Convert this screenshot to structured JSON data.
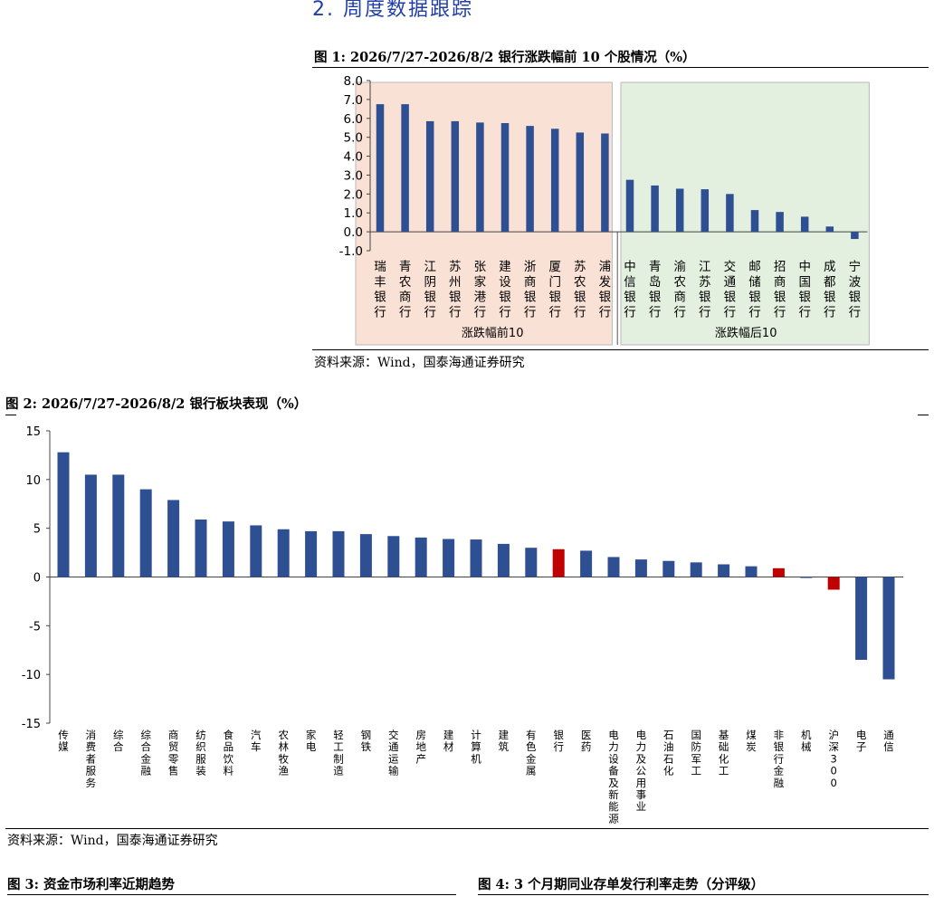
{
  "section_heading": "2. 周度数据跟踪",
  "fig1": {
    "title": "图 1:  2026/7/27-2026/8/2 银行涨跌幅前 10 个股情况（%）",
    "source": "资料来源：Wind，国泰海通证券研究"
  },
  "fig2": {
    "title": "图 2:  2026/7/27-2026/8/2 银行板块表现（%）",
    "source": "资料来源：Wind，国泰海通证券研究"
  },
  "fig3": {
    "title": "图 3:  资金市场利率近期趋势"
  },
  "fig4": {
    "title": "图 4:  3 个月期同业存单发行利率走势（分评级）"
  },
  "colors": {
    "bar": "#2f4f93",
    "highlight": "#c00000",
    "top_bg": "#f9e1d6",
    "bottom_bg": "#e4f0df"
  },
  "chart_data": [
    {
      "type": "bar",
      "title": "2026/7/27-2026/8/2 银行涨跌幅前 10 个股情况（%）",
      "categories": [
        "瑞丰银行",
        "青农商行",
        "江阴银行",
        "苏州银行",
        "张家港行",
        "建设银行",
        "浙商银行",
        "厦门银行",
        "苏农银行",
        "浦发银行",
        "中信银行",
        "青岛银行",
        "渝农商行",
        "江苏银行",
        "交通银行",
        "邮储银行",
        "招商银行",
        "中国银行",
        "成都银行",
        "宁波银行"
      ],
      "values": [
        6.75,
        6.75,
        5.85,
        5.85,
        5.78,
        5.75,
        5.6,
        5.45,
        5.25,
        5.2,
        2.75,
        2.45,
        2.28,
        2.25,
        2.0,
        1.15,
        1.05,
        0.8,
        0.28,
        -0.38
      ],
      "groups": [
        {
          "name": "涨跌幅前10",
          "start": 0,
          "end": 9
        },
        {
          "name": "涨跌幅后10",
          "start": 10,
          "end": 19
        }
      ],
      "ylim": [
        -1.0,
        8.0
      ],
      "yticks": [
        "8.0",
        "7.0",
        "6.0",
        "5.0",
        "4.0",
        "3.0",
        "2.0",
        "1.0",
        "0.0",
        "-1.0"
      ]
    },
    {
      "type": "bar",
      "title": "2026/7/27-2026/8/2 银行板块表现（%）",
      "categories": [
        "传媒",
        "消费者服务",
        "综合",
        "综合金融",
        "商贸零售",
        "纺织服装",
        "食品饮料",
        "汽车",
        "农林牧渔",
        "家电",
        "轻工制造",
        "钢铁",
        "交通运输",
        "房地产",
        "建材",
        "计算机",
        "建筑",
        "有色金属",
        "银行",
        "医药",
        "电力设备及新能源",
        "电力及公用事业",
        "石油石化",
        "国防军工",
        "基础化工",
        "煤炭",
        "非银行金融",
        "机械",
        "沪深300",
        "电子",
        "通信"
      ],
      "values": [
        12.8,
        10.5,
        10.5,
        9.0,
        7.9,
        5.9,
        5.7,
        5.3,
        4.9,
        4.7,
        4.7,
        4.4,
        4.2,
        4.05,
        3.9,
        3.85,
        3.4,
        3.0,
        2.85,
        2.7,
        2.05,
        1.8,
        1.65,
        1.5,
        1.3,
        1.1,
        0.9,
        -0.1,
        -1.3,
        -8.5,
        -10.5
      ],
      "highlight": [
        "银行",
        "非银行金融",
        "沪深300"
      ],
      "ylim": [
        -15,
        15
      ],
      "yticks": [
        "15",
        "10",
        "5",
        "0",
        "-5",
        "-10",
        "-15"
      ]
    }
  ]
}
